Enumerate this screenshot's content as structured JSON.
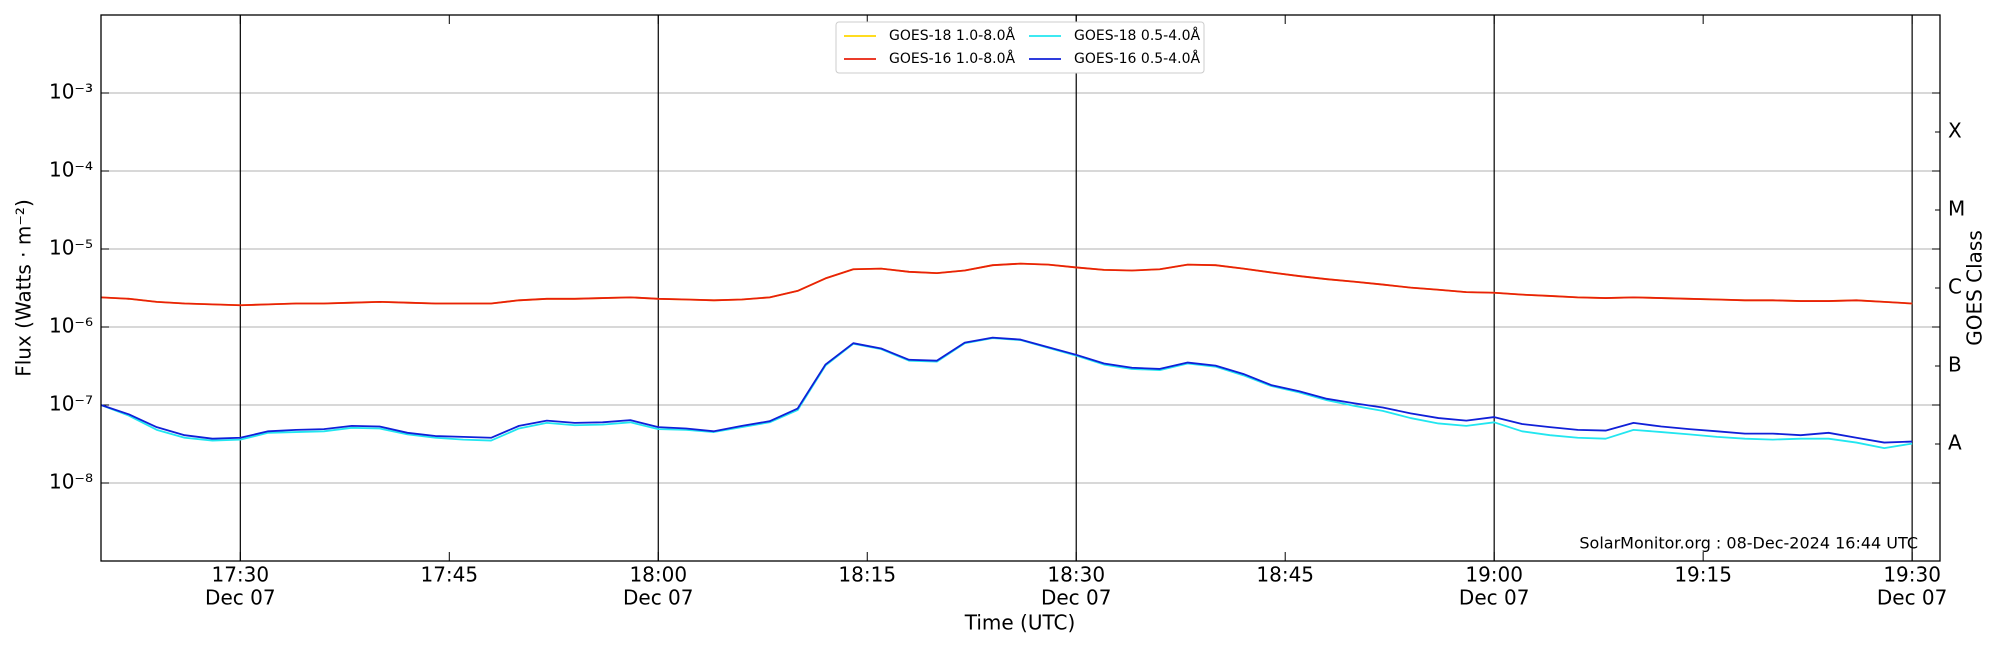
{
  "chart_data": {
    "type": "line",
    "ylabel": "Flux (Watts · m⁻²)",
    "xlabel": "Time (UTC)",
    "y2label": "GOES Class",
    "annotation": "SolarMonitor.org : 08-Dec-2024 16:44 UTC",
    "log_scale": true,
    "grid": true,
    "legend": "top",
    "xlim": [
      "17:20",
      "19:32"
    ],
    "xticks": [
      {
        "value": "17:30",
        "label": "17:30",
        "date": "Dec 07"
      },
      {
        "value": "17:45",
        "label": "17:45"
      },
      {
        "value": "18:00",
        "label": "18:00",
        "date": "Dec 07"
      },
      {
        "value": "18:15",
        "label": "18:15"
      },
      {
        "value": "18:30",
        "label": "18:30",
        "date": "Dec 07"
      },
      {
        "value": "18:45",
        "label": "18:45"
      },
      {
        "value": "19:00",
        "label": "19:00",
        "date": "Dec 07"
      },
      {
        "value": "19:15",
        "label": "19:15"
      },
      {
        "value": "19:30",
        "label": "19:30",
        "date": "Dec 07"
      }
    ],
    "vlines": [
      "17:30",
      "18:00",
      "18:30",
      "19:00",
      "19:30"
    ],
    "ylim": [
      1e-09,
      0.01
    ],
    "yticks": [
      {
        "value": 1e-08,
        "label": "10⁻⁸"
      },
      {
        "value": 1e-07,
        "label": "10⁻⁷"
      },
      {
        "value": 1e-06,
        "label": "10⁻⁶"
      },
      {
        "value": 1e-05,
        "label": "10⁻⁵"
      },
      {
        "value": 0.0001,
        "label": "10⁻⁴"
      },
      {
        "value": 0.001,
        "label": "10⁻³"
      }
    ],
    "y2lim": [
      1e-09,
      0.01
    ],
    "y2ticks": [
      {
        "value": 3.162e-08,
        "label": "A"
      },
      {
        "value": 3.162e-07,
        "label": "B"
      },
      {
        "value": 3.162e-06,
        "label": "C"
      },
      {
        "value": 3.162e-05,
        "label": "M"
      },
      {
        "value": 0.0003162,
        "label": "X"
      }
    ],
    "x": [
      "17:20",
      "17:22",
      "17:24",
      "17:26",
      "17:28",
      "17:30",
      "17:32",
      "17:34",
      "17:36",
      "17:38",
      "17:40",
      "17:42",
      "17:44",
      "17:46",
      "17:48",
      "17:50",
      "17:52",
      "17:54",
      "17:56",
      "17:58",
      "18:00",
      "18:02",
      "18:04",
      "18:06",
      "18:08",
      "18:10",
      "18:12",
      "18:14",
      "18:16",
      "18:18",
      "18:20",
      "18:22",
      "18:24",
      "18:26",
      "18:28",
      "18:30",
      "18:32",
      "18:34",
      "18:36",
      "18:38",
      "18:40",
      "18:42",
      "18:44",
      "18:46",
      "18:48",
      "18:50",
      "18:52",
      "18:54",
      "18:56",
      "18:58",
      "19:00",
      "19:02",
      "19:04",
      "19:06",
      "19:08",
      "19:10",
      "19:12",
      "19:14",
      "19:16",
      "19:18",
      "19:20",
      "19:22",
      "19:24",
      "19:26",
      "19:28",
      "19:30"
    ],
    "series": [
      {
        "name": "GOES-18 1.0-8.0Å",
        "color": "#ffd700",
        "values": [
          2.4e-06,
          2.3e-06,
          2.1e-06,
          2e-06,
          1.95e-06,
          1.9e-06,
          1.95e-06,
          2e-06,
          2e-06,
          2.05e-06,
          2.1e-06,
          2.05e-06,
          2e-06,
          2e-06,
          2e-06,
          2.2e-06,
          2.3e-06,
          2.3e-06,
          2.35e-06,
          2.4e-06,
          2.3e-06,
          2.25e-06,
          2.2e-06,
          2.25e-06,
          2.4e-06,
          2.9e-06,
          4.2e-06,
          5.5e-06,
          5.6e-06,
          5.1e-06,
          4.9e-06,
          5.3e-06,
          6.2e-06,
          6.5e-06,
          6.3e-06,
          5.8e-06,
          5.4e-06,
          5.3e-06,
          5.5e-06,
          6.3e-06,
          6.2e-06,
          5.6e-06,
          5e-06,
          4.5e-06,
          4.1e-06,
          3.8e-06,
          3.5e-06,
          3.2e-06,
          3e-06,
          2.8e-06,
          2.75e-06,
          2.6e-06,
          2.5e-06,
          2.4e-06,
          2.35e-06,
          2.4e-06,
          2.35e-06,
          2.3e-06,
          2.25e-06,
          2.2e-06,
          2.2e-06,
          2.15e-06,
          2.15e-06,
          2.2e-06,
          2.1e-06,
          2e-06
        ]
      },
      {
        "name": "GOES-16 1.0-8.0Å",
        "color": "#e8200c",
        "values": [
          2.4e-06,
          2.3e-06,
          2.1e-06,
          2e-06,
          1.95e-06,
          1.9e-06,
          1.95e-06,
          2e-06,
          2e-06,
          2.05e-06,
          2.1e-06,
          2.05e-06,
          2e-06,
          2e-06,
          2e-06,
          2.2e-06,
          2.3e-06,
          2.3e-06,
          2.35e-06,
          2.4e-06,
          2.3e-06,
          2.25e-06,
          2.2e-06,
          2.25e-06,
          2.4e-06,
          2.9e-06,
          4.2e-06,
          5.5e-06,
          5.6e-06,
          5.1e-06,
          4.9e-06,
          5.3e-06,
          6.2e-06,
          6.5e-06,
          6.3e-06,
          5.8e-06,
          5.4e-06,
          5.3e-06,
          5.5e-06,
          6.3e-06,
          6.2e-06,
          5.6e-06,
          5e-06,
          4.5e-06,
          4.1e-06,
          3.8e-06,
          3.5e-06,
          3.2e-06,
          3e-06,
          2.8e-06,
          2.75e-06,
          2.6e-06,
          2.5e-06,
          2.4e-06,
          2.35e-06,
          2.4e-06,
          2.35e-06,
          2.3e-06,
          2.25e-06,
          2.2e-06,
          2.2e-06,
          2.15e-06,
          2.15e-06,
          2.2e-06,
          2.1e-06,
          2e-06
        ]
      },
      {
        "name": "GOES-18 0.5-4.0Å",
        "color": "#22e6f0",
        "values": [
          1e-07,
          7.3e-08,
          4.8e-08,
          3.8e-08,
          3.5e-08,
          3.6e-08,
          4.4e-08,
          4.5e-08,
          4.6e-08,
          5.1e-08,
          5e-08,
          4.2e-08,
          3.8e-08,
          3.6e-08,
          3.5e-08,
          5e-08,
          5.9e-08,
          5.5e-08,
          5.6e-08,
          6e-08,
          4.9e-08,
          4.8e-08,
          4.5e-08,
          5.2e-08,
          6e-08,
          8.6e-08,
          3.2e-07,
          6.1e-07,
          5.2e-07,
          3.7e-07,
          3.6e-07,
          6.2e-07,
          7.2e-07,
          6.8e-07,
          5.4e-07,
          4.3e-07,
          3.3e-07,
          2.9e-07,
          2.8e-07,
          3.4e-07,
          3.1e-07,
          2.4e-07,
          1.75e-07,
          1.45e-07,
          1.15e-07,
          9.7e-08,
          8.4e-08,
          6.8e-08,
          5.8e-08,
          5.4e-08,
          6e-08,
          4.6e-08,
          4.1e-08,
          3.8e-08,
          3.7e-08,
          4.8e-08,
          4.5e-08,
          4.2e-08,
          3.9e-08,
          3.7e-08,
          3.6e-08,
          3.7e-08,
          3.7e-08,
          3.3e-08,
          2.8e-08,
          3.2e-08
        ]
      },
      {
        "name": "GOES-16 0.5-4.0Å",
        "color": "#1020d8",
        "values": [
          1e-07,
          7.6e-08,
          5.2e-08,
          4.1e-08,
          3.7e-08,
          3.8e-08,
          4.6e-08,
          4.8e-08,
          4.9e-08,
          5.4e-08,
          5.3e-08,
          4.4e-08,
          4e-08,
          3.9e-08,
          3.8e-08,
          5.4e-08,
          6.3e-08,
          5.9e-08,
          6e-08,
          6.4e-08,
          5.2e-08,
          5e-08,
          4.6e-08,
          5.4e-08,
          6.2e-08,
          9e-08,
          3.3e-07,
          6.2e-07,
          5.3e-07,
          3.8e-07,
          3.7e-07,
          6.3e-07,
          7.3e-07,
          6.9e-07,
          5.5e-07,
          4.4e-07,
          3.4e-07,
          3e-07,
          2.9e-07,
          3.5e-07,
          3.2e-07,
          2.5e-07,
          1.8e-07,
          1.5e-07,
          1.2e-07,
          1.05e-07,
          9.3e-08,
          7.8e-08,
          6.8e-08,
          6.3e-08,
          7e-08,
          5.7e-08,
          5.2e-08,
          4.8e-08,
          4.7e-08,
          5.9e-08,
          5.3e-08,
          4.9e-08,
          4.6e-08,
          4.3e-08,
          4.3e-08,
          4.1e-08,
          4.4e-08,
          3.8e-08,
          3.3e-08,
          3.4e-08
        ]
      }
    ]
  }
}
